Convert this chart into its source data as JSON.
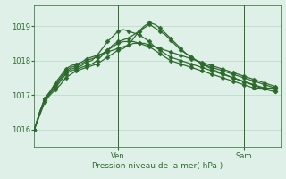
{
  "background_color": "#dff0e8",
  "grid_color": "#b8d8c8",
  "line_color": "#2d6a2d",
  "marker_color": "#2d6a2d",
  "title": "Pression niveau de la mer( hPa )",
  "xlabel_ven": "Ven",
  "xlabel_sam": "Sam",
  "ylim": [
    1015.5,
    1019.6
  ],
  "yticks": [
    1016,
    1017,
    1018,
    1019
  ],
  "xlim": [
    0,
    47
  ],
  "ven_x": 16,
  "sam_x": 40,
  "series": [
    [
      1016.0,
      1016.5,
      1016.9,
      1017.1,
      1017.35,
      1017.55,
      1017.75,
      1017.85,
      1017.9,
      1017.95,
      1018.05,
      1018.1,
      1018.15,
      1018.2,
      1018.25,
      1018.3,
      1018.35,
      1018.4,
      1018.45,
      1018.5,
      1018.5,
      1018.5,
      1018.45,
      1018.4,
      1018.35,
      1018.3,
      1018.25,
      1018.2,
      1018.15,
      1018.1,
      1018.05,
      1018.0,
      1017.95,
      1017.9,
      1017.85,
      1017.8,
      1017.75,
      1017.7,
      1017.65,
      1017.6,
      1017.55,
      1017.5,
      1017.45,
      1017.4,
      1017.35,
      1017.3,
      1017.25
    ],
    [
      1016.0,
      1016.5,
      1016.9,
      1017.1,
      1017.3,
      1017.5,
      1017.7,
      1017.8,
      1017.85,
      1017.9,
      1018.0,
      1018.05,
      1018.1,
      1018.2,
      1018.3,
      1018.4,
      1018.5,
      1018.55,
      1018.55,
      1018.55,
      1018.5,
      1018.45,
      1018.4,
      1018.3,
      1018.2,
      1018.1,
      1018.0,
      1017.95,
      1017.9,
      1017.85,
      1017.8,
      1017.75,
      1017.7,
      1017.65,
      1017.6,
      1017.55,
      1017.5,
      1017.45,
      1017.4,
      1017.35,
      1017.3,
      1017.25,
      1017.2,
      1017.2,
      1017.2,
      1017.2,
      1017.2
    ],
    [
      1016.0,
      1016.45,
      1016.85,
      1017.05,
      1017.25,
      1017.45,
      1017.65,
      1017.75,
      1017.8,
      1017.85,
      1017.95,
      1018.0,
      1018.15,
      1018.35,
      1018.55,
      1018.7,
      1018.85,
      1018.9,
      1018.85,
      1018.8,
      1018.75,
      1018.65,
      1018.55,
      1018.4,
      1018.3,
      1018.2,
      1018.1,
      1018.05,
      1018.0,
      1017.95,
      1017.9,
      1017.85,
      1017.8,
      1017.75,
      1017.7,
      1017.65,
      1017.6,
      1017.55,
      1017.5,
      1017.45,
      1017.4,
      1017.35,
      1017.3,
      1017.25,
      1017.2,
      1017.15,
      1017.1
    ],
    [
      1016.0,
      1016.45,
      1016.85,
      1017.05,
      1017.2,
      1017.4,
      1017.6,
      1017.7,
      1017.75,
      1017.8,
      1017.85,
      1017.9,
      1018.0,
      1018.15,
      1018.3,
      1018.45,
      1018.55,
      1018.6,
      1018.65,
      1018.75,
      1018.85,
      1018.95,
      1019.05,
      1018.95,
      1018.85,
      1018.75,
      1018.6,
      1018.45,
      1018.3,
      1018.2,
      1018.1,
      1018.0,
      1017.9,
      1017.85,
      1017.8,
      1017.75,
      1017.7,
      1017.65,
      1017.6,
      1017.55,
      1017.5,
      1017.45,
      1017.4,
      1017.35,
      1017.3,
      1017.25,
      1017.2
    ],
    [
      1016.0,
      1016.4,
      1016.8,
      1017.0,
      1017.15,
      1017.3,
      1017.5,
      1017.6,
      1017.7,
      1017.75,
      1017.8,
      1017.85,
      1017.9,
      1018.0,
      1018.1,
      1018.2,
      1018.3,
      1018.35,
      1018.45,
      1018.65,
      1018.85,
      1019.0,
      1019.1,
      1019.05,
      1018.95,
      1018.8,
      1018.65,
      1018.5,
      1018.35,
      1018.2,
      1018.1,
      1018.0,
      1017.9,
      1017.82,
      1017.75,
      1017.68,
      1017.62,
      1017.56,
      1017.5,
      1017.44,
      1017.38,
      1017.33,
      1017.28,
      1017.22,
      1017.18,
      1017.13,
      1017.1
    ]
  ],
  "marker_size": 2.5,
  "marker_step": 2,
  "linewidth": 0.9
}
